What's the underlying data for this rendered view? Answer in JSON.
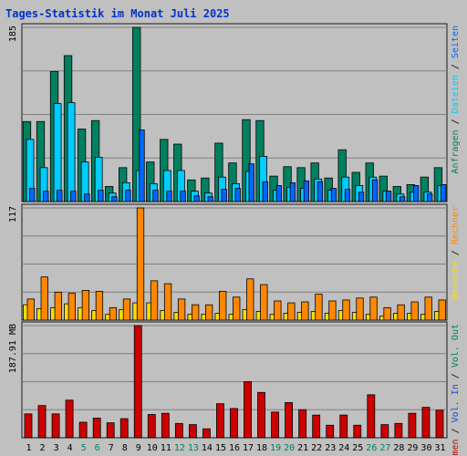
{
  "colors": {
    "background": "#c0c0c0",
    "panel_border": "#1a1a1a",
    "gridline": "#808080",
    "title": "#0033cc",
    "hits": "#008060",
    "files": "#00ccff",
    "pages": "#0066ff",
    "visits": "#ffdd00",
    "sites": "#ff8800",
    "kb_out": "#cc0000",
    "kb_in": "#2244cc",
    "weekend_label": "#008060",
    "day_label": "#000000"
  },
  "chart_data": [
    {
      "type": "bar",
      "title": "Tages-Statistik im Monat Juli 2025",
      "panel": "top",
      "ymax_label": "185",
      "ylim": [
        0,
        185
      ],
      "right_legend": [
        "Anfragen",
        "Dateien",
        "Seiten"
      ],
      "categories": [
        "1",
        "2",
        "3",
        "4",
        "5",
        "6",
        "7",
        "8",
        "9",
        "10",
        "11",
        "12",
        "13",
        "14",
        "15",
        "16",
        "17",
        "18",
        "19",
        "20",
        "21",
        "22",
        "23",
        "24",
        "25",
        "26",
        "27",
        "28",
        "29",
        "30",
        "31"
      ],
      "series": [
        {
          "name": "Anfragen",
          "color_key": "hits",
          "values": [
            85,
            85,
            138,
            155,
            77,
            86,
            16,
            36,
            185,
            42,
            66,
            61,
            23,
            25,
            62,
            41,
            87,
            86,
            27,
            37,
            36,
            41,
            25,
            55,
            31,
            41,
            27,
            16,
            18,
            26,
            36
          ]
        },
        {
          "name": "Dateien",
          "color_key": "files",
          "values": [
            66,
            36,
            104,
            105,
            42,
            47,
            9,
            20,
            33,
            19,
            33,
            33,
            11,
            9,
            26,
            19,
            32,
            48,
            12,
            15,
            14,
            24,
            12,
            26,
            17,
            26,
            11,
            8,
            10,
            10,
            17
          ]
        },
        {
          "name": "Seiten",
          "color_key": "pages",
          "values": [
            14,
            11,
            12,
            11,
            8,
            12,
            5,
            12,
            76,
            12,
            11,
            11,
            6,
            5,
            13,
            14,
            40,
            21,
            17,
            20,
            22,
            21,
            14,
            13,
            10,
            23,
            11,
            5,
            17,
            8,
            18
          ]
        }
      ]
    },
    {
      "type": "bar",
      "panel": "middle",
      "ymax_label": "117",
      "ylim": [
        0,
        117
      ],
      "right_legend": [
        "Besuche",
        "Rechner"
      ],
      "categories": [
        "1",
        "2",
        "3",
        "4",
        "5",
        "6",
        "7",
        "8",
        "9",
        "10",
        "11",
        "12",
        "13",
        "14",
        "15",
        "16",
        "17",
        "18",
        "19",
        "20",
        "21",
        "22",
        "23",
        "24",
        "25",
        "26",
        "27",
        "28",
        "29",
        "30",
        "31"
      ],
      "series": [
        {
          "name": "Besuche",
          "color_key": "visits",
          "values": [
            16,
            12,
            13,
            17,
            13,
            10,
            6,
            11,
            18,
            18,
            10,
            8,
            6,
            6,
            7,
            6,
            11,
            9,
            6,
            7,
            8,
            9,
            7,
            10,
            8,
            6,
            4,
            7,
            7,
            6,
            9
          ]
        },
        {
          "name": "Rechner",
          "color_key": "sites",
          "values": [
            22,
            45,
            29,
            28,
            31,
            30,
            13,
            22,
            117,
            41,
            38,
            22,
            16,
            16,
            30,
            24,
            43,
            37,
            20,
            18,
            19,
            27,
            20,
            21,
            23,
            24,
            13,
            16,
            19,
            24,
            21
          ]
        }
      ]
    },
    {
      "type": "bar",
      "panel": "bottom",
      "ymax_label": "187.91 MB",
      "ylim": [
        0,
        187.91
      ],
      "right_legend": [
        "Volumen",
        "Vol. In",
        "Vol. Out"
      ],
      "categories": [
        "1",
        "2",
        "3",
        "4",
        "5",
        "6",
        "7",
        "8",
        "9",
        "10",
        "11",
        "12",
        "13",
        "14",
        "15",
        "16",
        "17",
        "18",
        "19",
        "20",
        "21",
        "22",
        "23",
        "24",
        "25",
        "26",
        "27",
        "28",
        "29",
        "30",
        "31"
      ],
      "series": [
        {
          "name": "Volumen",
          "color_key": "kb_out",
          "values": [
            40,
            54,
            40,
            63,
            26,
            33,
            25,
            32,
            187.91,
            39,
            41,
            24,
            22,
            15,
            57,
            49,
            94,
            76,
            43,
            59,
            47,
            38,
            21,
            38,
            21,
            72,
            22,
            24,
            41,
            51,
            46
          ]
        }
      ]
    }
  ],
  "weekend_days": [
    5,
    6,
    12,
    13,
    19,
    20,
    26,
    27
  ]
}
